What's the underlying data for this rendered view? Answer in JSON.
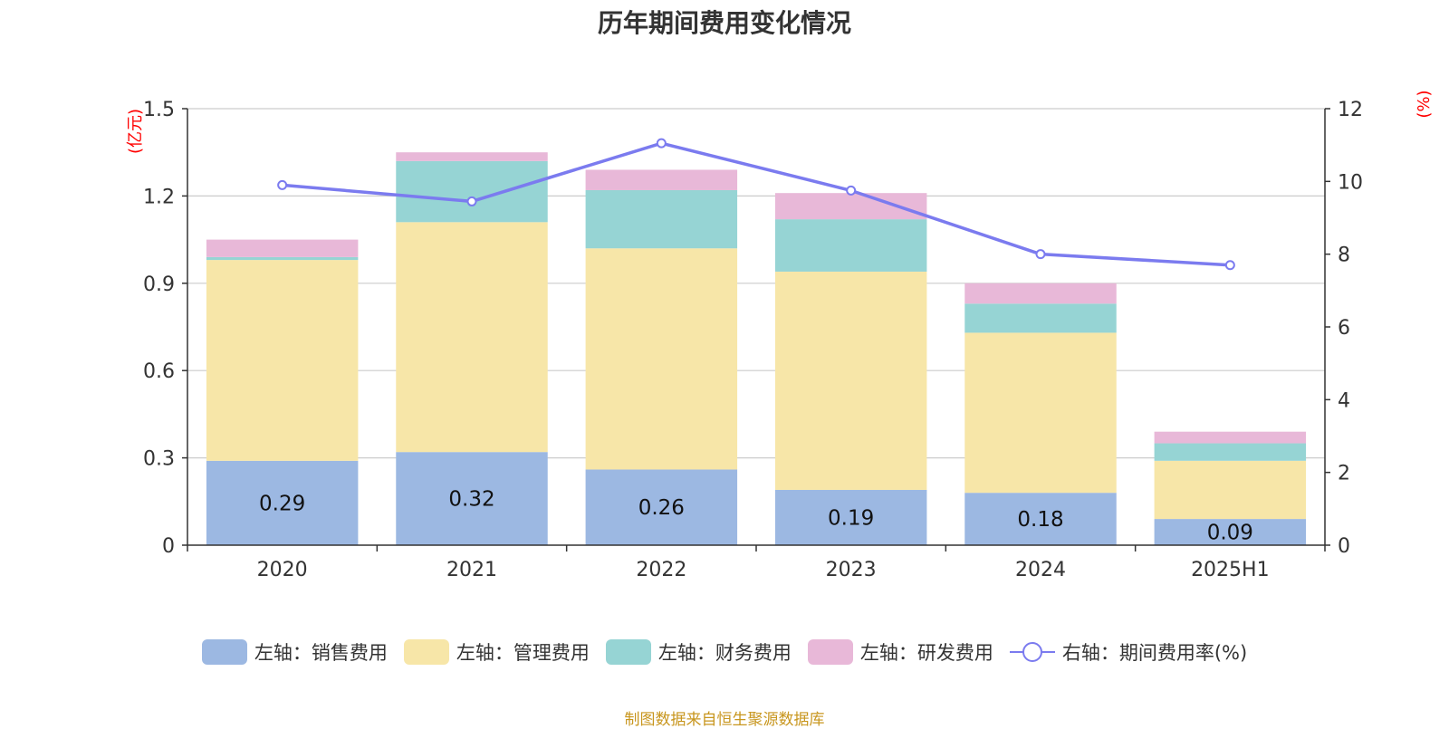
{
  "title": "历年期间费用变化情况",
  "source": "制图数据来自恒生聚源数据库",
  "chart_data": {
    "type": "bar",
    "stacked": true,
    "categories": [
      "2020",
      "2021",
      "2022",
      "2023",
      "2024",
      "2025H1"
    ],
    "series": [
      {
        "name": "左轴：销售费用",
        "axis": "left",
        "color": "#9cb8e2",
        "values": [
          0.29,
          0.32,
          0.26,
          0.19,
          0.18,
          0.09
        ],
        "show_labels": true
      },
      {
        "name": "左轴：管理费用",
        "axis": "left",
        "color": "#f7e6a8",
        "values": [
          0.69,
          0.79,
          0.76,
          0.75,
          0.55,
          0.2
        ]
      },
      {
        "name": "左轴：财务费用",
        "axis": "left",
        "color": "#96d4d4",
        "values": [
          0.01,
          0.21,
          0.2,
          0.18,
          0.1,
          0.06
        ]
      },
      {
        "name": "左轴：研发费用",
        "axis": "left",
        "color": "#e8b8d8",
        "values": [
          0.06,
          0.03,
          0.07,
          0.09,
          0.07,
          0.04
        ]
      },
      {
        "name": "右轴：期间费用率(%)",
        "axis": "right",
        "type": "line",
        "color": "#7b7bef",
        "values": [
          9.9,
          9.45,
          11.05,
          9.75,
          8.0,
          7.7
        ]
      }
    ],
    "left_axis": {
      "unit": "(亿元)",
      "min": 0,
      "max": 1.5,
      "ticks": [
        0,
        0.3,
        0.6,
        0.9,
        1.2,
        1.5
      ],
      "tick_labels": [
        "0",
        "0.3",
        "0.6",
        "0.9",
        "1.2",
        "1.5"
      ]
    },
    "right_axis": {
      "unit": "(%)",
      "min": 0,
      "max": 12,
      "ticks": [
        0,
        2,
        4,
        6,
        8,
        10,
        12
      ],
      "tick_labels": [
        "0",
        "2",
        "4",
        "6",
        "8",
        "10",
        "12"
      ]
    },
    "grid": true,
    "legend_position": "bottom"
  }
}
